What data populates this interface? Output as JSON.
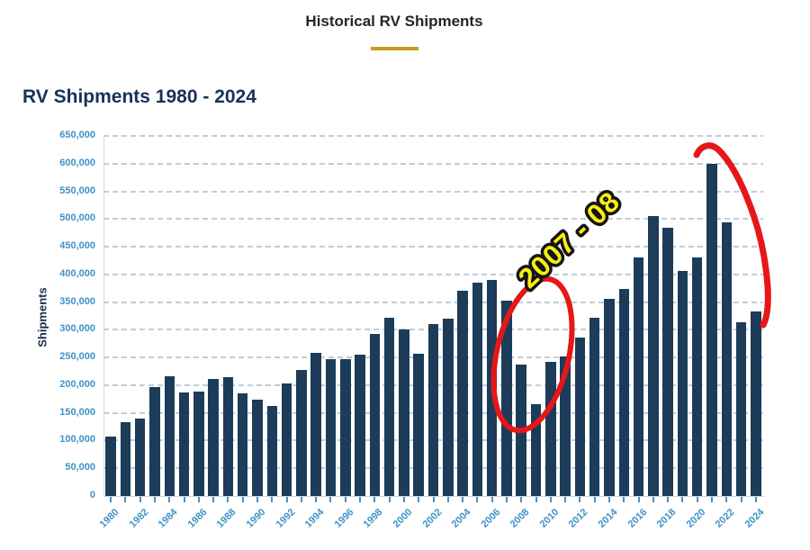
{
  "header": {
    "title": "Historical RV Shipments",
    "underline_color": "#c79c1f"
  },
  "chart": {
    "title": "RV Shipments 1980 - 2024"
  },
  "chart_data": {
    "type": "bar",
    "title": "RV Shipments 1980 - 2024",
    "xlabel": "",
    "ylabel": "Shipments",
    "ylim": [
      0,
      650000
    ],
    "y_tick_interval": 50000,
    "grid": "horizontal-dashed",
    "legend": "none",
    "bar_color": "#1c3c59",
    "axis_label_color": "#3e92c5",
    "grid_color": "#b9cfdd",
    "categories": [
      1980,
      1981,
      1982,
      1983,
      1984,
      1985,
      1986,
      1987,
      1988,
      1989,
      1990,
      1991,
      1992,
      1993,
      1994,
      1995,
      1996,
      1997,
      1998,
      1999,
      2000,
      2001,
      2002,
      2003,
      2004,
      2005,
      2006,
      2007,
      2008,
      2009,
      2010,
      2011,
      2012,
      2013,
      2014,
      2015,
      2016,
      2017,
      2018,
      2019,
      2020,
      2021,
      2022,
      2023,
      2024
    ],
    "values": [
      107200,
      132700,
      140500,
      196100,
      216300,
      187200,
      187900,
      211000,
      214600,
      185700,
      173100,
      163300,
      203400,
      227800,
      259200,
      247000,
      247500,
      254500,
      292700,
      321200,
      300100,
      256800,
      311000,
      320800,
      370100,
      384400,
      390500,
      353400,
      237000,
      165700,
      242300,
      252300,
      285700,
      321100,
      356700,
      374100,
      430700,
      504600,
      483700,
      406100,
      430400,
      600240,
      493268,
      313174,
      333733
    ],
    "y_tick_labels": [
      "0",
      "50,000",
      "100,000",
      "150,000",
      "200,000",
      "250,000",
      "300,000",
      "350,000",
      "400,000",
      "450,000",
      "500,000",
      "550,000",
      "600,000",
      "650,000"
    ],
    "x_tick_labels": [
      "1980",
      "1982",
      "1984",
      "1986",
      "1988",
      "1990",
      "1992",
      "1994",
      "1996",
      "1998",
      "2000",
      "2002",
      "2004",
      "2006",
      "2008",
      "2010",
      "2012",
      "2014",
      "2016",
      "2018",
      "2020",
      "2022",
      "2024"
    ]
  },
  "annotations": {
    "circle_label": "2007 - 08",
    "circle_color": "#e61717",
    "curve_color": "#e61717",
    "label_color": "#f7ee12",
    "circled_years": "2008 - 2010 downturn",
    "curve_years": "2021 - 2024 decline"
  }
}
